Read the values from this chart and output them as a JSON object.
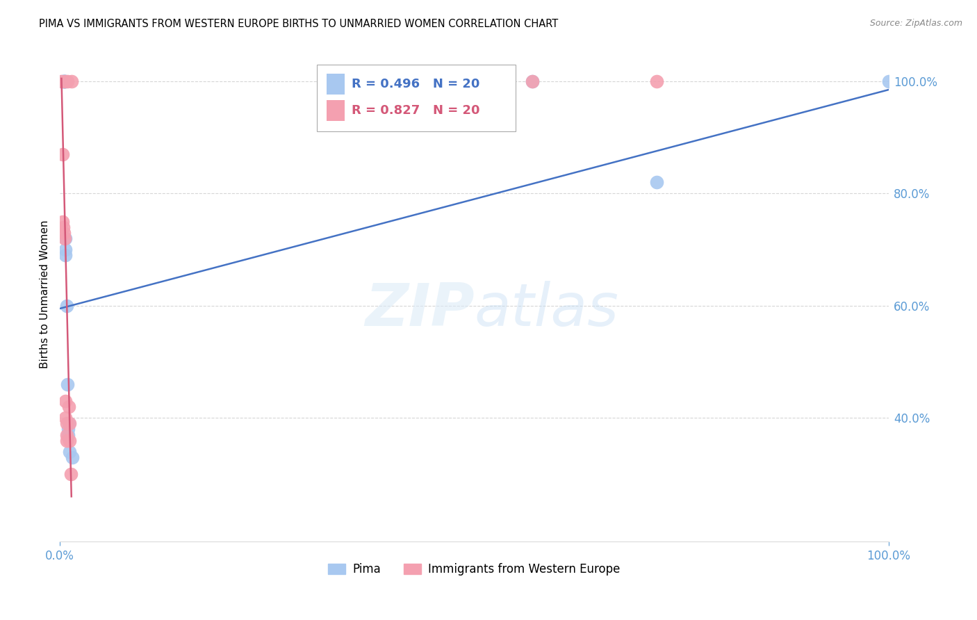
{
  "title": "PIMA VS IMMIGRANTS FROM WESTERN EUROPE BIRTHS TO UNMARRIED WOMEN CORRELATION CHART",
  "source": "Source: ZipAtlas.com",
  "ylabel": "Births to Unmarried Women",
  "title_fontsize": 10.5,
  "axis_color": "#5b9bd5",
  "background_color": "#ffffff",
  "watermark": "ZIPatlas",
  "pima_x": [
    0.003,
    0.004,
    0.005,
    0.005,
    0.006,
    0.006,
    0.007,
    0.007,
    0.007,
    0.007,
    0.008,
    0.009,
    0.01,
    0.01,
    0.011,
    0.012,
    0.015,
    0.57,
    0.72,
    1.0
  ],
  "pima_y": [
    1.0,
    1.0,
    1.0,
    1.0,
    1.0,
    1.0,
    1.0,
    0.72,
    0.69,
    0.7,
    0.6,
    0.46,
    0.37,
    0.38,
    0.39,
    0.34,
    0.33,
    1.0,
    0.82,
    1.0
  ],
  "immig_x": [
    0.002,
    0.003,
    0.003,
    0.004,
    0.005,
    0.006,
    0.006,
    0.007,
    0.007,
    0.008,
    0.008,
    0.008,
    0.009,
    0.011,
    0.012,
    0.012,
    0.013,
    0.014,
    0.57,
    0.72
  ],
  "immig_y": [
    1.0,
    0.87,
    0.75,
    0.74,
    0.73,
    0.72,
    1.0,
    0.43,
    0.4,
    0.39,
    0.37,
    0.36,
    1.0,
    0.42,
    0.39,
    0.36,
    0.3,
    1.0,
    1.0,
    1.0
  ],
  "pima_color": "#a8c8f0",
  "immig_color": "#f4a0b0",
  "pima_line_color": "#4472c4",
  "immig_line_color": "#d45878",
  "legend_R_color": "#4472c4",
  "legend_P_color": "#d45878",
  "pima_line_x0": 0.0,
  "pima_line_y0": 0.595,
  "pima_line_x1": 1.0,
  "pima_line_y1": 0.985,
  "immig_line_x0": 0.002,
  "immig_line_y0": 1.005,
  "immig_line_x1": 0.014,
  "immig_line_y1": 0.26,
  "xlim_min": 0.0,
  "xlim_max": 1.0,
  "ylim_min": 0.18,
  "ylim_max": 1.06,
  "xticks": [
    0.0,
    1.0
  ],
  "xtick_labels": [
    "0.0%",
    "100.0%"
  ],
  "yticks": [
    0.4,
    0.6,
    0.8,
    1.0
  ],
  "ytick_labels": [
    "40.0%",
    "60.0%",
    "80.0%",
    "100.0%"
  ],
  "grid_color": "#cccccc",
  "grid_linestyle": "--",
  "grid_alpha": 0.8
}
